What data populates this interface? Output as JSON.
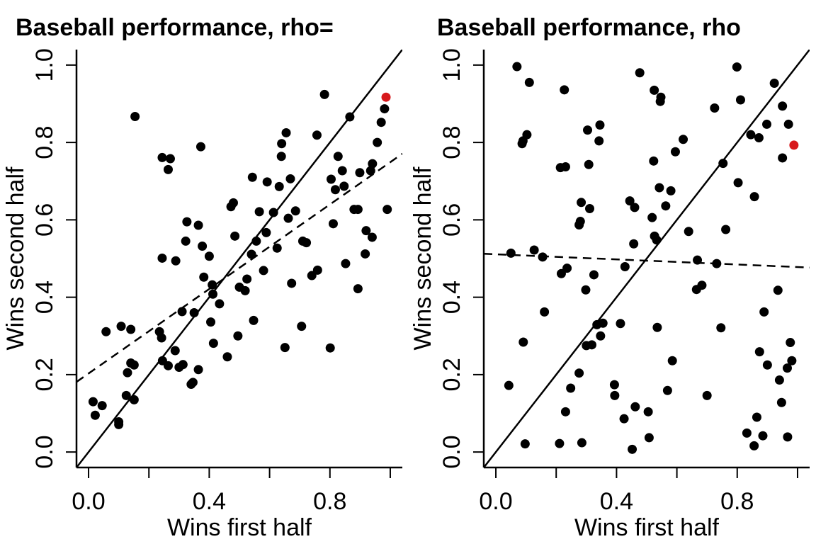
{
  "chart_data": [
    {
      "type": "scatter",
      "title": "Baseball performance, rho=",
      "xlabel": "Wins first half",
      "ylabel": "Wins second half",
      "xlim": [
        -0.04,
        1.04
      ],
      "ylim": [
        -0.04,
        1.04
      ],
      "xticks": [
        "0.0",
        "0.4",
        "0.8"
      ],
      "yticks": [
        "0.0",
        "0.2",
        "0.4",
        "0.6",
        "0.8",
        "1.0"
      ],
      "grid": false,
      "identity_line": {
        "from": [
          0,
          0
        ],
        "to": [
          1,
          1
        ],
        "style": "solid"
      },
      "regression_line": {
        "intercept": 0.203,
        "slope": 0.546,
        "style": "dashed"
      },
      "highlight": {
        "x": 0.986,
        "y": 0.917,
        "color": "#d7191c"
      },
      "point_color": "#000000",
      "points": [
        [
          0.015,
          0.13
        ],
        [
          0.022,
          0.095
        ],
        [
          0.045,
          0.12
        ],
        [
          0.058,
          0.311
        ],
        [
          0.1,
          0.078
        ],
        [
          0.1,
          0.071
        ],
        [
          0.108,
          0.325
        ],
        [
          0.125,
          0.146
        ],
        [
          0.129,
          0.205
        ],
        [
          0.14,
          0.317
        ],
        [
          0.14,
          0.23
        ],
        [
          0.151,
          0.225
        ],
        [
          0.151,
          0.135
        ],
        [
          0.154,
          0.867
        ],
        [
          0.235,
          0.311
        ],
        [
          0.242,
          0.295
        ],
        [
          0.244,
          0.501
        ],
        [
          0.244,
          0.761
        ],
        [
          0.264,
          0.73
        ],
        [
          0.271,
          0.758
        ],
        [
          0.245,
          0.236
        ],
        [
          0.264,
          0.223
        ],
        [
          0.287,
          0.262
        ],
        [
          0.289,
          0.494
        ],
        [
          0.3,
          0.219
        ],
        [
          0.31,
          0.363
        ],
        [
          0.313,
          0.226
        ],
        [
          0.322,
          0.545
        ],
        [
          0.326,
          0.595
        ],
        [
          0.34,
          0.175
        ],
        [
          0.346,
          0.18
        ],
        [
          0.35,
          0.36
        ],
        [
          0.364,
          0.213
        ],
        [
          0.364,
          0.586
        ],
        [
          0.372,
          0.789
        ],
        [
          0.377,
          0.532
        ],
        [
          0.382,
          0.452
        ],
        [
          0.4,
          0.506
        ],
        [
          0.405,
          0.336
        ],
        [
          0.41,
          0.432
        ],
        [
          0.412,
          0.408
        ],
        [
          0.414,
          0.281
        ],
        [
          0.434,
          0.383
        ],
        [
          0.46,
          0.246
        ],
        [
          0.472,
          0.634
        ],
        [
          0.48,
          0.644
        ],
        [
          0.485,
          0.558
        ],
        [
          0.495,
          0.3
        ],
        [
          0.5,
          0.426
        ],
        [
          0.519,
          0.417
        ],
        [
          0.525,
          0.447
        ],
        [
          0.54,
          0.511
        ],
        [
          0.543,
          0.71
        ],
        [
          0.547,
          0.34
        ],
        [
          0.556,
          0.545
        ],
        [
          0.566,
          0.621
        ],
        [
          0.58,
          0.469
        ],
        [
          0.589,
          0.567
        ],
        [
          0.592,
          0.698
        ],
        [
          0.613,
          0.619
        ],
        [
          0.625,
          0.527
        ],
        [
          0.632,
          0.686
        ],
        [
          0.639,
          0.764
        ],
        [
          0.64,
          0.797
        ],
        [
          0.651,
          0.27
        ],
        [
          0.655,
          0.825
        ],
        [
          0.662,
          0.604
        ],
        [
          0.669,
          0.706
        ],
        [
          0.673,
          0.436
        ],
        [
          0.686,
          0.623
        ],
        [
          0.706,
          0.325
        ],
        [
          0.71,
          0.545
        ],
        [
          0.722,
          0.541
        ],
        [
          0.74,
          0.456
        ],
        [
          0.759,
          0.47
        ],
        [
          0.757,
          0.819
        ],
        [
          0.782,
          0.924
        ],
        [
          0.801,
          0.269
        ],
        [
          0.804,
          0.705
        ],
        [
          0.811,
          0.59
        ],
        [
          0.818,
          0.678
        ],
        [
          0.827,
          0.764
        ],
        [
          0.841,
          0.727
        ],
        [
          0.847,
          0.687
        ],
        [
          0.852,
          0.487
        ],
        [
          0.866,
          0.866
        ],
        [
          0.88,
          0.627
        ],
        [
          0.893,
          0.422
        ],
        [
          0.893,
          0.627
        ],
        [
          0.899,
          0.722
        ],
        [
          0.917,
          0.512
        ],
        [
          0.92,
          0.572
        ],
        [
          0.935,
          0.727
        ],
        [
          0.94,
          0.555
        ],
        [
          0.941,
          0.745
        ],
        [
          0.957,
          0.8
        ],
        [
          0.97,
          0.852
        ],
        [
          0.981,
          0.887
        ],
        [
          0.99,
          0.627
        ]
      ]
    },
    {
      "type": "scatter",
      "title": "Baseball performance, rho",
      "xlabel": "Wins first half",
      "ylabel": "Wins second half",
      "xlim": [
        -0.04,
        1.04
      ],
      "ylim": [
        -0.04,
        1.04
      ],
      "xticks": [
        "0.0",
        "0.4",
        "0.8"
      ],
      "yticks": [
        "0.0",
        "0.2",
        "0.4",
        "0.6",
        "0.8",
        "1.0"
      ],
      "grid": false,
      "identity_line": {
        "from": [
          0,
          0
        ],
        "to": [
          1,
          1
        ],
        "style": "solid"
      },
      "regression_line": {
        "intercept": 0.511,
        "slope": -0.033,
        "style": "dashed"
      },
      "highlight": {
        "x": 0.988,
        "y": 0.793,
        "color": "#d7191c"
      },
      "point_color": "#000000",
      "points": [
        [
          0.043,
          0.172
        ],
        [
          0.05,
          0.514
        ],
        [
          0.07,
          0.996
        ],
        [
          0.087,
          0.797
        ],
        [
          0.09,
          0.804
        ],
        [
          0.091,
          0.284
        ],
        [
          0.097,
          0.021
        ],
        [
          0.103,
          0.82
        ],
        [
          0.111,
          0.955
        ],
        [
          0.127,
          0.522
        ],
        [
          0.155,
          0.504
        ],
        [
          0.161,
          0.362
        ],
        [
          0.211,
          0.022
        ],
        [
          0.214,
          0.735
        ],
        [
          0.217,
          0.461
        ],
        [
          0.227,
          0.936
        ],
        [
          0.231,
          0.104
        ],
        [
          0.231,
          0.737
        ],
        [
          0.236,
          0.475
        ],
        [
          0.248,
          0.165
        ],
        [
          0.276,
          0.204
        ],
        [
          0.276,
          0.587
        ],
        [
          0.28,
          0.596
        ],
        [
          0.283,
          0.645
        ],
        [
          0.285,
          0.024
        ],
        [
          0.298,
          0.419
        ],
        [
          0.3,
          0.275
        ],
        [
          0.304,
          0.832
        ],
        [
          0.308,
          0.743
        ],
        [
          0.311,
          0.629
        ],
        [
          0.318,
          0.277
        ],
        [
          0.325,
          0.458
        ],
        [
          0.335,
          0.329
        ],
        [
          0.342,
          0.804
        ],
        [
          0.345,
          0.845
        ],
        [
          0.347,
          0.3
        ],
        [
          0.355,
          0.333
        ],
        [
          0.393,
          0.174
        ],
        [
          0.394,
          0.146
        ],
        [
          0.413,
          0.332
        ],
        [
          0.425,
          0.086
        ],
        [
          0.428,
          0.479
        ],
        [
          0.444,
          0.649
        ],
        [
          0.452,
          0.007
        ],
        [
          0.457,
          0.538
        ],
        [
          0.46,
          0.632
        ],
        [
          0.462,
          0.117
        ],
        [
          0.477,
          0.98
        ],
        [
          0.505,
          0.104
        ],
        [
          0.508,
          0.037
        ],
        [
          0.518,
          0.606
        ],
        [
          0.523,
          0.752
        ],
        [
          0.525,
          0.935
        ],
        [
          0.526,
          0.558
        ],
        [
          0.533,
          0.548
        ],
        [
          0.535,
          0.322
        ],
        [
          0.542,
          0.683
        ],
        [
          0.545,
          0.906
        ],
        [
          0.547,
          0.917
        ],
        [
          0.563,
          0.636
        ],
        [
          0.569,
          0.159
        ],
        [
          0.58,
          0.675
        ],
        [
          0.585,
          0.236
        ],
        [
          0.595,
          0.776
        ],
        [
          0.621,
          0.808
        ],
        [
          0.639,
          0.57
        ],
        [
          0.665,
          0.42
        ],
        [
          0.668,
          0.496
        ],
        [
          0.683,
          0.431
        ],
        [
          0.7,
          0.146
        ],
        [
          0.725,
          0.889
        ],
        [
          0.732,
          0.487
        ],
        [
          0.746,
          0.321
        ],
        [
          0.753,
          0.746
        ],
        [
          0.762,
          0.575
        ],
        [
          0.799,
          0.995
        ],
        [
          0.803,
          0.696
        ],
        [
          0.811,
          0.91
        ],
        [
          0.832,
          0.049
        ],
        [
          0.845,
          0.82
        ],
        [
          0.856,
          0.016
        ],
        [
          0.857,
          0.66
        ],
        [
          0.865,
          0.09
        ],
        [
          0.872,
          0.812
        ],
        [
          0.874,
          0.259
        ],
        [
          0.885,
          0.042
        ],
        [
          0.889,
          0.362
        ],
        [
          0.898,
          0.847
        ],
        [
          0.9,
          0.225
        ],
        [
          0.923,
          0.953
        ],
        [
          0.935,
          0.418
        ],
        [
          0.94,
          0.186
        ],
        [
          0.947,
          0.128
        ],
        [
          0.95,
          0.894
        ],
        [
          0.95,
          0.76
        ],
        [
          0.966,
          0.217
        ],
        [
          0.967,
          0.039
        ],
        [
          0.97,
          0.847
        ],
        [
          0.976,
          0.283
        ],
        [
          0.981,
          0.236
        ]
      ]
    }
  ]
}
